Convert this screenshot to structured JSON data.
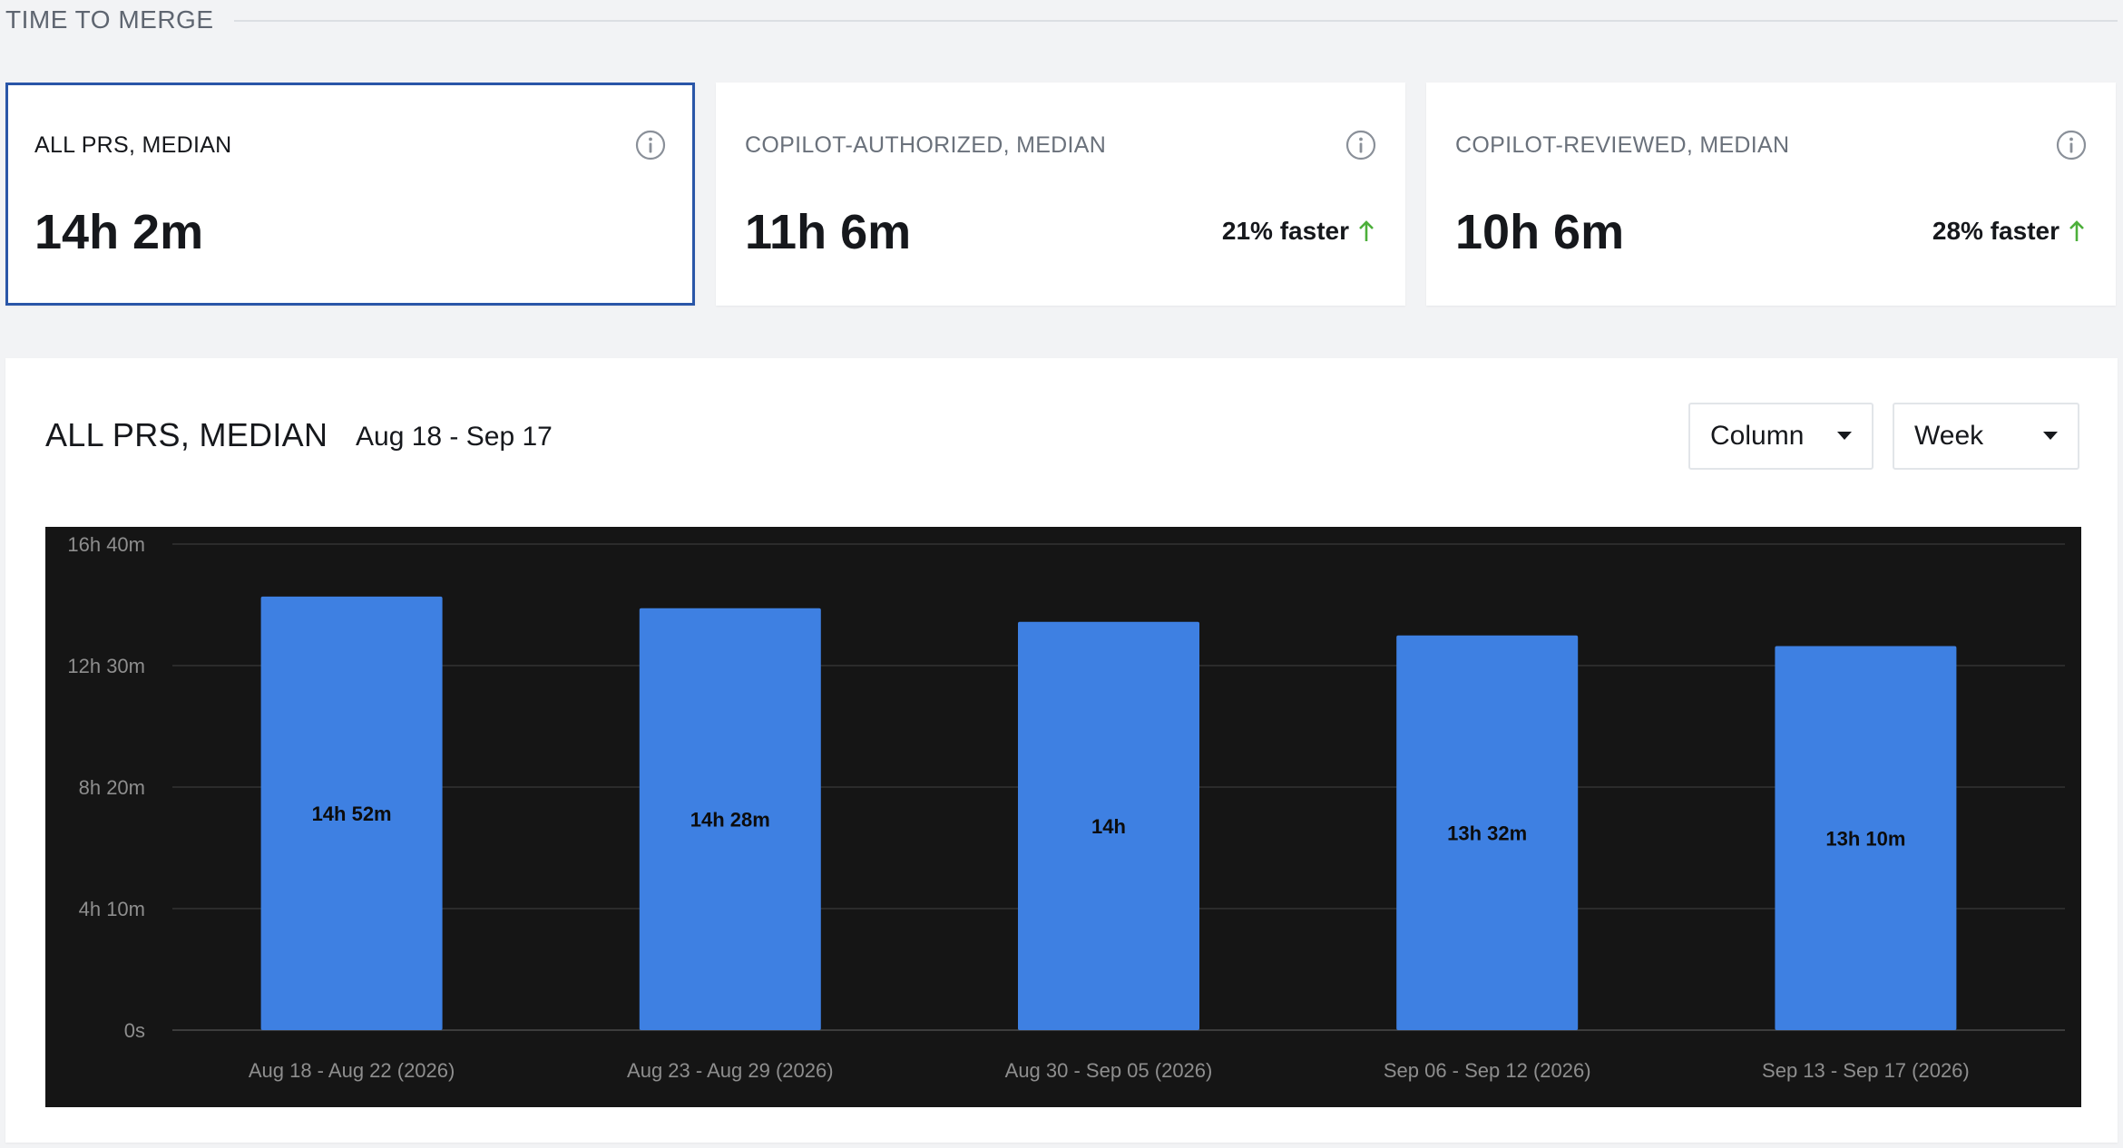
{
  "section": {
    "title": "TIME TO MERGE"
  },
  "kpis": [
    {
      "label": "ALL PRS, MEDIAN",
      "value": "14h 2m",
      "delta": "",
      "selected": true
    },
    {
      "label": "COPILOT-AUTHORIZED, MEDIAN",
      "value": "11h 6m",
      "delta": "21% faster",
      "selected": false
    },
    {
      "label": "COPILOT-REVIEWED, MEDIAN",
      "value": "10h 6m",
      "delta": "28% faster",
      "selected": false
    }
  ],
  "icons": {
    "info": "info-circle-icon",
    "delta": "arrow-up-icon",
    "caret": "caret-down-icon"
  },
  "colors": {
    "accent_border": "#2a56a8",
    "bar": "#3e80e2",
    "chart_bg": "#151515",
    "delta_up": "#4caf3a"
  },
  "panel": {
    "title": "ALL PRS, MEDIAN",
    "range": "Aug 18 - Sep 17",
    "chart_type_select": "Column",
    "interval_select": "Week"
  },
  "chart_data": {
    "type": "bar",
    "categories": [
      "Aug 18 - Aug 22 (2026)",
      "Aug 23 - Aug 29 (2026)",
      "Aug 30 - Sep 05 (2026)",
      "Sep 06 - Sep 12 (2026)",
      "Sep 13 - Sep 17 (2026)"
    ],
    "values_minutes": [
      892,
      868,
      840,
      812,
      790
    ],
    "data_labels": [
      "14h 52m",
      "14h 28m",
      "14h",
      "13h 32m",
      "13h 10m"
    ],
    "y_ticks": [
      "0s",
      "4h 10m",
      "8h 20m",
      "12h 30m",
      "16h 40m"
    ],
    "y_tick_minutes": [
      0,
      250,
      500,
      750,
      1000
    ],
    "ylim_minutes": [
      0,
      1000
    ],
    "grid": true,
    "legend": "none"
  }
}
